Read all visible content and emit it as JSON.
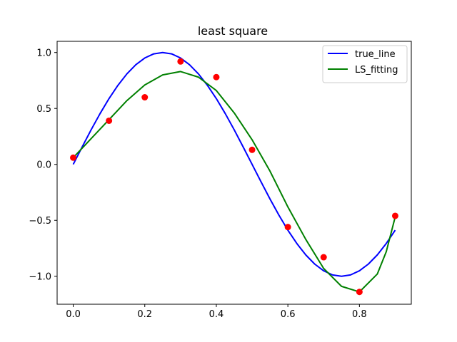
{
  "chart_data": {
    "type": "line",
    "title": "least square",
    "xlabel": "",
    "ylabel": "",
    "xlim": [
      -0.045,
      0.945
    ],
    "ylim": [
      -1.25,
      1.1
    ],
    "x_ticks": [
      0.0,
      0.2,
      0.4,
      0.6,
      0.8
    ],
    "x_tick_labels": [
      "0.0",
      "0.2",
      "0.4",
      "0.6",
      "0.8"
    ],
    "y_ticks": [
      -1.0,
      -0.5,
      0.0,
      0.5,
      1.0
    ],
    "y_tick_labels": [
      "−1.0",
      "−0.5",
      "0.0",
      "0.5",
      "1.0"
    ],
    "grid": false,
    "legend_position": "top-right",
    "series": [
      {
        "name": "true_line",
        "kind": "line",
        "color": "#0000ff",
        "x": [
          0.0,
          0.025,
          0.05,
          0.075,
          0.1,
          0.125,
          0.15,
          0.175,
          0.2,
          0.225,
          0.25,
          0.275,
          0.3,
          0.325,
          0.35,
          0.375,
          0.4,
          0.425,
          0.45,
          0.475,
          0.5,
          0.525,
          0.55,
          0.575,
          0.6,
          0.625,
          0.65,
          0.675,
          0.7,
          0.725,
          0.75,
          0.775,
          0.8,
          0.825,
          0.85,
          0.875,
          0.9
        ],
        "y": [
          0.0,
          0.156,
          0.309,
          0.454,
          0.588,
          0.707,
          0.809,
          0.891,
          0.951,
          0.988,
          1.0,
          0.988,
          0.951,
          0.891,
          0.809,
          0.707,
          0.588,
          0.454,
          0.309,
          0.156,
          0.0,
          -0.156,
          -0.309,
          -0.454,
          -0.588,
          -0.707,
          -0.809,
          -0.891,
          -0.951,
          -0.988,
          -1.0,
          -0.988,
          -0.951,
          -0.891,
          -0.809,
          -0.707,
          -0.588
        ]
      },
      {
        "name": "LS_fitting",
        "kind": "line",
        "color": "#008000",
        "x": [
          0.0,
          0.05,
          0.1,
          0.15,
          0.2,
          0.25,
          0.3,
          0.35,
          0.4,
          0.45,
          0.5,
          0.55,
          0.6,
          0.65,
          0.7,
          0.75,
          0.8,
          0.85,
          0.875,
          0.9
        ],
        "y": [
          0.06,
          0.23,
          0.4,
          0.57,
          0.71,
          0.8,
          0.83,
          0.78,
          0.66,
          0.46,
          0.22,
          -0.06,
          -0.38,
          -0.67,
          -0.93,
          -1.09,
          -1.14,
          -0.98,
          -0.78,
          -0.47
        ]
      },
      {
        "name": "",
        "kind": "scatter",
        "color": "#ff0000",
        "x": [
          0.0,
          0.1,
          0.2,
          0.3,
          0.4,
          0.5,
          0.6,
          0.7,
          0.8,
          0.9
        ],
        "y": [
          0.06,
          0.39,
          0.6,
          0.92,
          0.78,
          0.13,
          -0.56,
          -0.83,
          -1.14,
          -0.46
        ]
      }
    ]
  }
}
